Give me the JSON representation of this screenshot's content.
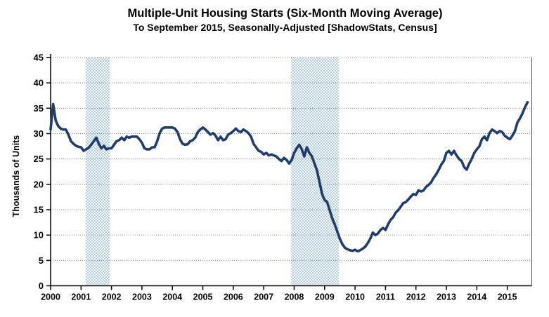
{
  "chart_data": {
    "type": "line",
    "title": "Multiple-Unit Housing Starts (Six-Month Moving Average)",
    "subtitle": "To September 2015, Seasonally-Adjusted [ShadowStats, Census]",
    "ylabel": "Thousands of Units",
    "xlabel": "",
    "ylim": [
      0,
      45
    ],
    "yticks": [
      0,
      5,
      10,
      15,
      20,
      25,
      30,
      35,
      40,
      45
    ],
    "xticks": [
      2000,
      2001,
      2002,
      2003,
      2004,
      2005,
      2006,
      2007,
      2008,
      2009,
      2010,
      2011,
      2012,
      2013,
      2014,
      2015
    ],
    "grid": "horizontal-dotted",
    "legend": "none",
    "x_start_year": 2000,
    "x_frequency": "monthly",
    "x_end": "2015-09",
    "recession_bands": [
      [
        2001.15,
        2001.95
      ],
      [
        2007.9,
        2009.47
      ]
    ],
    "series": [
      {
        "name": "Multiple-unit housing starts, six-month moving average (thousands of units)",
        "values": [
          30.8,
          35.8,
          32.6,
          31.5,
          31.0,
          30.8,
          30.8,
          29.8,
          28.5,
          28.0,
          27.6,
          27.4,
          27.3,
          26.6,
          26.9,
          27.2,
          27.8,
          28.5,
          29.2,
          28.0,
          27.1,
          27.6,
          26.9,
          27.1,
          27.1,
          27.8,
          28.5,
          28.7,
          29.2,
          28.7,
          29.4,
          29.2,
          29.4,
          29.4,
          29.4,
          28.9,
          28.2,
          27.1,
          26.9,
          26.9,
          27.3,
          27.3,
          28.5,
          30.1,
          31.0,
          31.2,
          31.2,
          31.2,
          31.2,
          31.0,
          30.3,
          28.9,
          28.0,
          27.8,
          27.9,
          28.5,
          28.7,
          29.2,
          30.3,
          30.8,
          31.2,
          30.8,
          30.3,
          29.8,
          30.1,
          29.6,
          28.7,
          29.4,
          28.7,
          28.9,
          29.8,
          30.1,
          30.5,
          31.0,
          30.5,
          30.3,
          30.8,
          30.5,
          30.1,
          29.4,
          28.0,
          27.3,
          26.6,
          26.4,
          25.9,
          26.2,
          25.7,
          25.9,
          25.7,
          25.5,
          25.0,
          24.6,
          25.2,
          24.8,
          24.1,
          24.8,
          26.2,
          27.1,
          27.8,
          26.9,
          25.5,
          27.3,
          26.2,
          25.5,
          24.1,
          22.7,
          20.4,
          18.1,
          16.9,
          16.5,
          14.9,
          13.3,
          12.1,
          10.7,
          9.3,
          8.2,
          7.5,
          7.2,
          7.0,
          6.9,
          7.1,
          6.8,
          7.0,
          7.3,
          7.7,
          8.4,
          9.3,
          10.5,
          10.0,
          10.3,
          11.0,
          11.4,
          11.0,
          12.1,
          13.0,
          13.5,
          14.4,
          14.9,
          15.6,
          16.3,
          16.5,
          17.0,
          17.6,
          18.1,
          17.9,
          18.8,
          18.6,
          18.8,
          19.5,
          19.9,
          20.4,
          21.3,
          22.0,
          22.9,
          23.9,
          24.6,
          26.2,
          26.6,
          25.9,
          26.6,
          25.7,
          25.0,
          24.6,
          23.4,
          22.9,
          24.1,
          25.0,
          26.2,
          26.9,
          27.5,
          28.9,
          29.4,
          28.7,
          30.1,
          30.8,
          30.5,
          30.1,
          30.5,
          30.3,
          29.6,
          29.2,
          28.9,
          29.6,
          30.5,
          32.2,
          33.0,
          34.0,
          35.2,
          36.2
        ]
      }
    ],
    "colors": {
      "line": "#1f3d6d",
      "band": "#aecde8",
      "grid": "#888888",
      "axis": "#000000",
      "plot_right_border": "#555555"
    }
  }
}
